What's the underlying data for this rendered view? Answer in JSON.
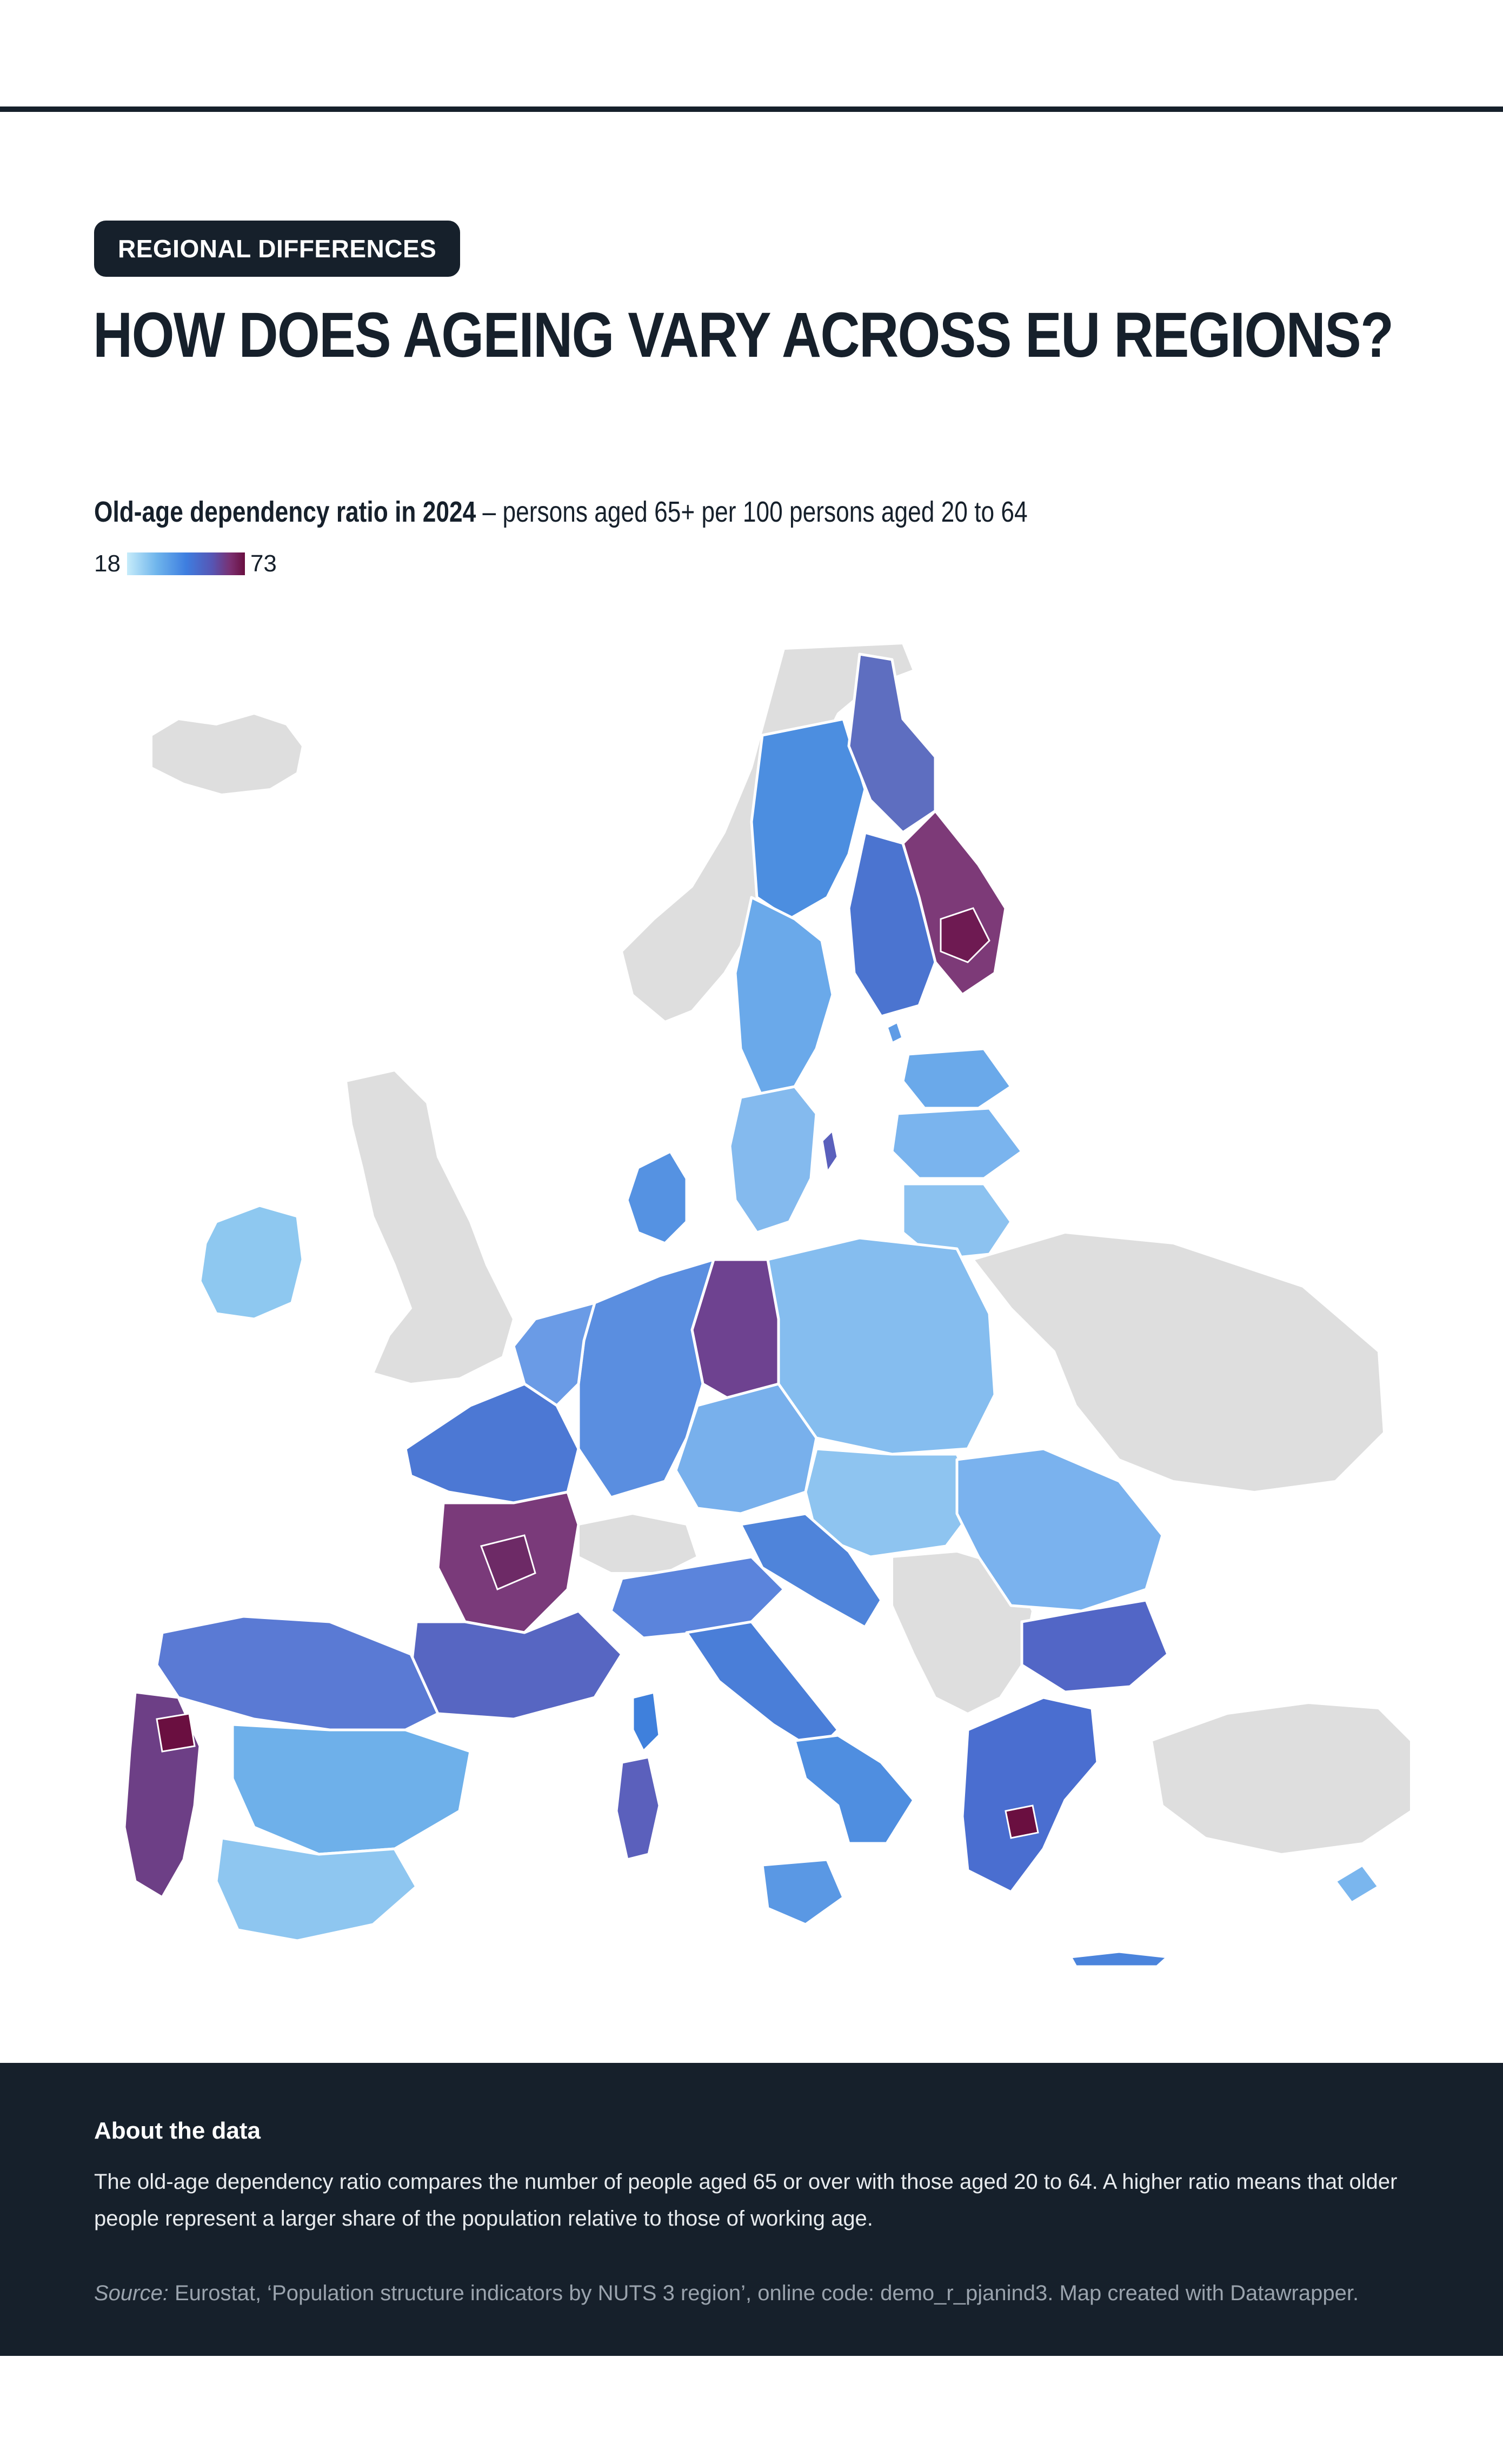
{
  "header": {
    "tag": "REGIONAL DIFFERENCES",
    "title": "HOW DOES AGEING VARY ACROSS EU REGIONS?"
  },
  "chart": {
    "subtitle_strong": "Old-age dependency ratio in 2024",
    "subtitle_rest": " – persons aged 65+ per 100 persons aged 20 to 64",
    "legend_min": "18",
    "legend_max": "73"
  },
  "chart_data": {
    "type": "heatmap",
    "map_kind": "choropleth of EU NUTS 3 regions",
    "legend_min": 18,
    "legend_max": 73,
    "colors": {
      "low": "#c6ecfa",
      "mid_low": "#6fb5ec",
      "mid": "#3e7ee0",
      "mid_high": "#5656b5",
      "high": "#7a2f70",
      "max": "#6a0f40",
      "no_data": "#e0e0e0"
    }
  },
  "footer": {
    "about_title": "About the data",
    "about_text": "The old-age dependency ratio compares the number of people aged 65 or over with those aged 20 to 64. A higher ratio means that older people represent a larger share of the population relative to those of working age.",
    "source_label": "Source:",
    "source_text": " Eurostat, ‘Population structure indicators by NUTS 3 region’, online code: demo_r_pjanind3. Map created with Datawrapper."
  }
}
